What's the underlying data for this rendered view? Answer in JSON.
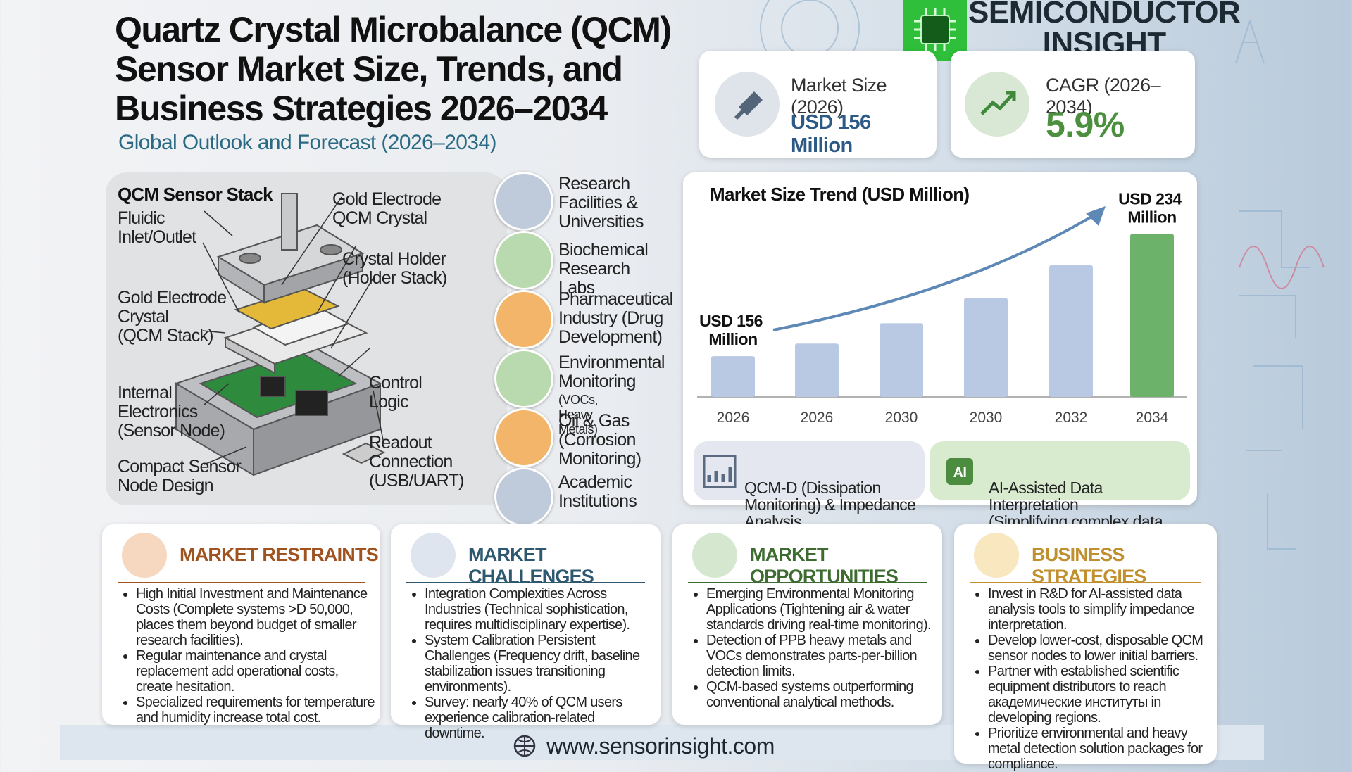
{
  "header": {
    "title_lines": [
      "Quartz Crystal Microbalance (QCM)",
      "Sensor Market Size, Trends, and",
      "Business Strategies 2026–2034"
    ],
    "subtitle": "Global Outlook and Forecast (2026–2034)"
  },
  "brand": {
    "lines": [
      "SEMICONDUCTOR",
      "INSIGHT"
    ]
  },
  "stats": [
    {
      "label": "Market Size (2026)",
      "value": "USD 156 Million"
    },
    {
      "label": "CAGR (2026–2034)",
      "value": "5.9%"
    }
  ],
  "diagram": {
    "title": "QCM Sensor Stack",
    "labels": [
      "Fluidic\nInlet/Outlet",
      "Gold Electrode\nQCM Crystal",
      "Crystal Holder\n(Holder Stack)",
      "Gold Electrode\nCrystal\n(QCM Stack)",
      "Internal\nElectronics\n(Sensor Node)",
      "Control\nLogic",
      "Readout\nConnection\n(USB/UART)",
      "Compact Sensor\nNode Design"
    ]
  },
  "applications": [
    {
      "text": "Research\nFacilities &\nUniversities"
    },
    {
      "text": "Biochemical\nResearch Labs"
    },
    {
      "text": "Pharmaceutical\nIndustry (Drug\nDevelopment)"
    },
    {
      "text": "Environmental\nMonitoring",
      "note": "(VOCs, Heavy Metals)"
    },
    {
      "text": "Oil & Gas\n(Corrosion\nMonitoring)"
    },
    {
      "text": "Academic\nInstitutions"
    }
  ],
  "chart_data": {
    "type": "bar",
    "title": "Market Size Trend (USD Million)",
    "categories": [
      "2026",
      "2026",
      "2030",
      "2030",
      "2032",
      "2034"
    ],
    "values": [
      156,
      164,
      177,
      193,
      214,
      234
    ],
    "value_labels": [
      "USD 156 Million",
      null,
      null,
      null,
      null,
      "USD 234 Million"
    ],
    "colors": [
      "#b9c8e3",
      "#b9c8e3",
      "#b9c8e3",
      "#b9c8e3",
      "#b9c8e3",
      "#6cb26a"
    ],
    "ylim": [
      130,
      240
    ]
  },
  "features": [
    "QCM-D (Dissipation\nMonitoring) & Impedance\nAnalysis",
    "AI-Assisted Data Interpretation\n(Simplifying complex data\nanalysis)"
  ],
  "cards": [
    {
      "title": "MARKET RESTRAINTS",
      "items": [
        "High Initial Investment and Maintenance Costs (Complete systems >D 50,000, places them beyond budget of smaller research facilities).",
        "Regular maintenance and crystal replacement add operational costs, create hesitation.",
        "Specialized requirements for temperature and humidity increase total cost."
      ]
    },
    {
      "title": "MARKET CHALLENGES",
      "items": [
        "Integration Complexities Across Industries (Technical sophistication, requires multidisciplinary expertise).",
        "System Calibration Persistent Challenges (Frequency drift, baseline stabilization issues transitioning environments).",
        "Survey: nearly 40% of QCM users experience calibration-related downtime."
      ]
    },
    {
      "title": "MARKET OPPORTUNITIES",
      "items": [
        "Emerging Environmental Monitoring Applications (Tightening air & water standards driving real-time monitoring).",
        "Detection of PPB heavy metals and VOCs demonstrates parts-per-billion detection limits.",
        "QCM-based systems outperforming conventional analytical methods."
      ]
    },
    {
      "title": "BUSINESS STRATEGIES",
      "items": [
        "Invest in R&D for AI-assisted data analysis tools to simplify impedance interpretation.",
        "Develop lower-cost, disposable QCM sensor nodes to lower initial barriers.",
        "Partner with established scientific equipment distributors to reach академические институты in developing regions.",
        "Prioritize environmental and heavy metal detection solution packages for compliance."
      ]
    }
  ],
  "footer": {
    "url": "www.sensorinsight.com"
  }
}
